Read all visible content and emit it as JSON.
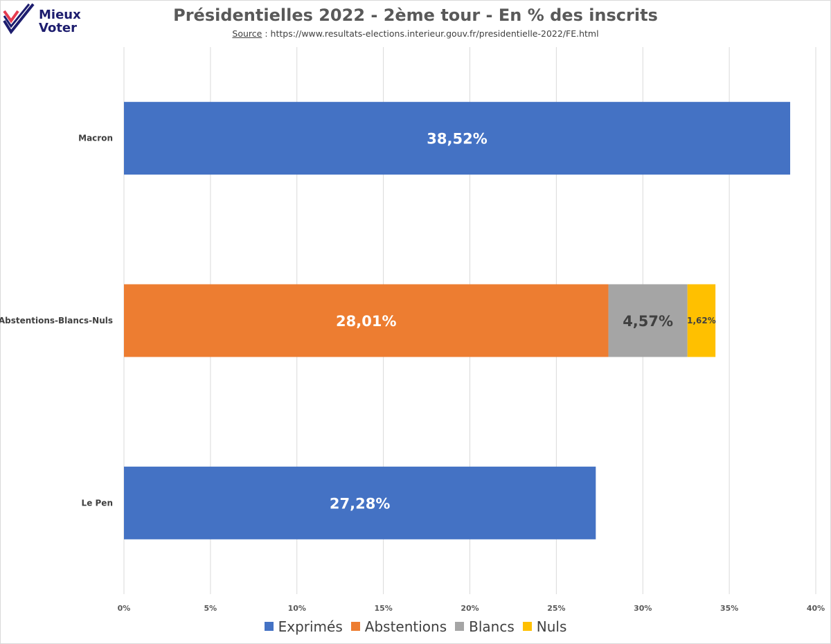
{
  "logo": {
    "line1": "Mieux",
    "line2": "Voter"
  },
  "source": {
    "label": "Source",
    "separator": " : ",
    "url": "https://www.resultats-elections.interieur.gouv.fr/presidentielle-2022/FE.html"
  },
  "chart_data": {
    "type": "bar",
    "orientation": "horizontal",
    "stacked": true,
    "title": "Présidentielles 2022 - 2ème tour - En % des inscrits",
    "categories": [
      "Macron",
      "Abstentions-Blancs-Nuls",
      "Le Pen"
    ],
    "series": [
      {
        "name": "Exprimés",
        "color": "#4472C4",
        "values": [
          38.52,
          0,
          27.28
        ],
        "labels": [
          "38,52%",
          "",
          "27,28%"
        ]
      },
      {
        "name": "Abstentions",
        "color": "#ED7D31",
        "values": [
          0,
          28.01,
          0
        ],
        "labels": [
          "",
          "28,01%",
          ""
        ]
      },
      {
        "name": "Blancs",
        "color": "#A5A5A5",
        "values": [
          0,
          4.57,
          0
        ],
        "labels": [
          "",
          "4,57%",
          ""
        ]
      },
      {
        "name": "Nuls",
        "color": "#FFC000",
        "values": [
          0,
          1.62,
          0
        ],
        "labels": [
          "",
          "1,62%",
          ""
        ]
      }
    ],
    "xlim": [
      0,
      40
    ],
    "xticks": [
      0,
      5,
      10,
      15,
      20,
      25,
      30,
      35,
      40
    ],
    "xtick_labels": [
      "0%",
      "5%",
      "10%",
      "15%",
      "20%",
      "25%",
      "30%",
      "35%",
      "40%"
    ],
    "grid": true,
    "legend_position": "bottom"
  }
}
